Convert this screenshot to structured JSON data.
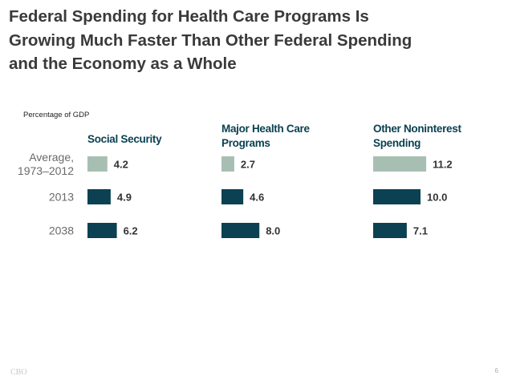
{
  "slide": {
    "title_lines": [
      "Federal Spending for Health Care Programs Is",
      "Growing Much Faster Than Other Federal Spending",
      "and the Economy as a Whole"
    ],
    "ylabel": "Percentage of GDP",
    "footer_source": "CBO",
    "page_number": "6"
  },
  "chart_data": {
    "type": "bar",
    "orientation": "horizontal",
    "ylabel": "Percentage of GDP",
    "categories": [
      "Average, 1973–2012",
      "2013",
      "2038"
    ],
    "category_lines": [
      [
        "Average,",
        "1973–2012"
      ],
      [
        "2013"
      ],
      [
        "2038"
      ]
    ],
    "panels": [
      {
        "title_lines": [
          "Social Security"
        ],
        "values": [
          4.2,
          4.9,
          6.2
        ]
      },
      {
        "title_lines": [
          "Major Health Care",
          "Programs"
        ],
        "values": [
          2.7,
          4.6,
          8.0
        ]
      },
      {
        "title_lines": [
          "Other Noninterest",
          "Spending"
        ],
        "values": [
          11.2,
          10.0,
          7.1
        ]
      }
    ],
    "colors": [
      "#a7bfb2",
      "#0b4152",
      "#0b4152"
    ],
    "title_color": "#0b4152",
    "grid": false,
    "legend": "none"
  }
}
